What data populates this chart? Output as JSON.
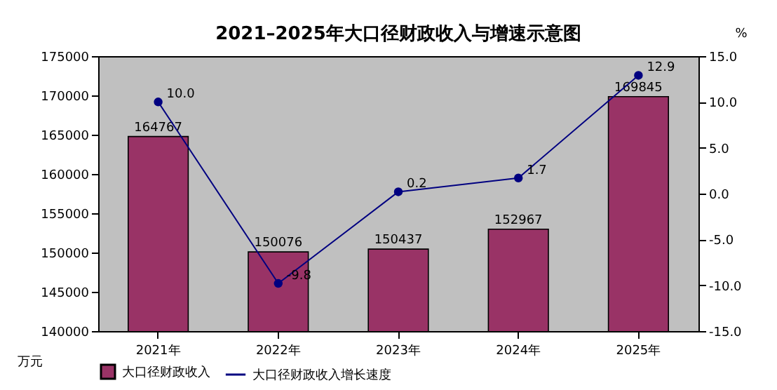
{
  "chart_data": {
    "type": "bar",
    "title": "2021–2025年大口径财政收入与增速示意图",
    "ylabel": "万元",
    "y2label": "%",
    "categories": [
      "2021年",
      "2022年",
      "2023年",
      "2024年",
      "2025年"
    ],
    "series": [
      {
        "name": "大口径财政收入",
        "color": "#993366",
        "values": [
          164767,
          150076,
          150437,
          152967,
          169845
        ]
      },
      {
        "name": "大口径财政收入增长速度",
        "type": "line",
        "axis": "y2",
        "color": "#000080",
        "values": [
          10.0,
          -9.8,
          0.2,
          1.7,
          12.9
        ],
        "value_labels": [
          "10.0",
          "-9.8",
          "0.2",
          "1.7",
          "12.9"
        ]
      }
    ],
    "ylim": [
      140000,
      175000
    ],
    "yticks": [
      140000,
      145000,
      150000,
      155000,
      160000,
      165000,
      170000,
      175000
    ],
    "y2lim": [
      -15,
      15
    ],
    "y2ticks": [
      {
        "value": -15,
        "label": "-15.0"
      },
      {
        "value": -10,
        "label": "-10.0"
      },
      {
        "value": -5,
        "label": "-5.0"
      },
      {
        "value": 0,
        "label": "0.0"
      },
      {
        "value": 5,
        "label": "5.0"
      },
      {
        "value": 10,
        "label": "10.0"
      },
      {
        "value": 15,
        "label": "15.0"
      }
    ],
    "data_labels": true,
    "legend": "bottom",
    "marker": "circle",
    "grid": false
  }
}
